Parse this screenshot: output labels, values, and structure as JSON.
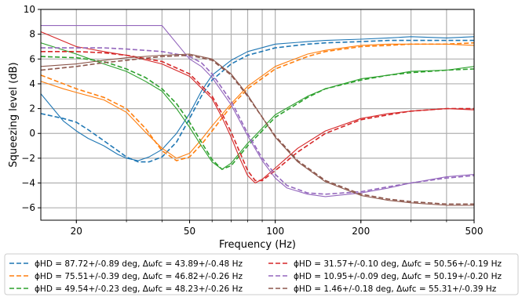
{
  "chart_data": {
    "type": "line",
    "title": "",
    "xlabel": "Frequency (Hz)",
    "ylabel": "Squeezing level (dB)",
    "xscale": "log",
    "xlim": [
      15,
      500
    ],
    "ylim": [
      -7,
      10
    ],
    "xticks": [
      20,
      50,
      100,
      200,
      500
    ],
    "xtick_labels": [
      "20",
      "50",
      "100",
      "200",
      "500"
    ],
    "yticks": [
      -6,
      -4,
      -2,
      0,
      2,
      4,
      6,
      8,
      10
    ],
    "ytick_labels": [
      "−6",
      "−4",
      "−2",
      "0",
      "2",
      "4",
      "6",
      "8",
      "10"
    ],
    "grid": true,
    "legend_position": "below plot",
    "legend_columns": 2,
    "series": [
      {
        "name": "ϕHD = 87.72+/-0.89 deg, Δωfc = 43.89+/-0.48 Hz",
        "color": "#1f77b4",
        "x": [
          15,
          18,
          20,
          22,
          25,
          28,
          30,
          33,
          36,
          40,
          45,
          50,
          55,
          60,
          70,
          80,
          100,
          130,
          150,
          200,
          250,
          300,
          400,
          500
        ],
        "model": [
          1.6,
          1.2,
          0.9,
          0.3,
          -0.6,
          -1.4,
          -1.9,
          -2.3,
          -2.3,
          -1.9,
          -0.7,
          1.2,
          3.0,
          4.3,
          5.6,
          6.3,
          6.9,
          7.2,
          7.3,
          7.4,
          7.5,
          7.5,
          7.5,
          7.5
        ],
        "measured": [
          3.2,
          1.0,
          0.2,
          -0.4,
          -1.0,
          -1.7,
          -2.0,
          -2.2,
          -1.9,
          -1.3,
          0.0,
          1.6,
          3.4,
          4.7,
          5.9,
          6.6,
          7.2,
          7.4,
          7.5,
          7.6,
          7.7,
          7.8,
          7.7,
          7.8
        ]
      },
      {
        "name": "ϕHD = 75.51+/-0.39 deg, Δωfc = 46.82+/-0.26 Hz",
        "color": "#ff7f0e",
        "x": [
          15,
          18,
          20,
          25,
          30,
          35,
          40,
          45,
          50,
          55,
          60,
          70,
          80,
          100,
          130,
          150,
          200,
          250,
          300,
          400,
          500
        ],
        "model": [
          4.7,
          4.0,
          3.6,
          2.9,
          2.0,
          0.4,
          -1.4,
          -2.2,
          -1.9,
          -0.9,
          0.2,
          2.2,
          3.6,
          5.2,
          6.2,
          6.6,
          7.0,
          7.1,
          7.2,
          7.2,
          7.3
        ],
        "measured": [
          4.2,
          3.6,
          3.3,
          2.7,
          1.7,
          0.1,
          -1.2,
          -2.0,
          -1.6,
          -0.5,
          0.6,
          2.4,
          3.8,
          5.4,
          6.4,
          6.7,
          7.1,
          7.2,
          7.2,
          7.2,
          7.1
        ]
      },
      {
        "name": "ϕHD = 49.54+/-0.23 deg, Δωfc = 48.23+/-0.26 Hz",
        "color": "#2ca02c",
        "x": [
          15,
          20,
          25,
          30,
          35,
          40,
          45,
          50,
          55,
          60,
          65,
          70,
          80,
          100,
          130,
          150,
          200,
          250,
          300,
          400,
          500
        ],
        "model": [
          6.2,
          6.1,
          5.8,
          5.2,
          4.5,
          3.6,
          2.4,
          0.9,
          -0.7,
          -2.1,
          -2.9,
          -2.6,
          -1.0,
          1.3,
          2.9,
          3.6,
          4.3,
          4.7,
          4.9,
          5.1,
          5.2
        ],
        "measured": [
          7.3,
          6.4,
          5.6,
          5.0,
          4.2,
          3.4,
          2.0,
          0.5,
          -1.0,
          -2.3,
          -2.9,
          -2.4,
          -0.8,
          1.5,
          3.0,
          3.6,
          4.4,
          4.7,
          5.0,
          5.1,
          5.4
        ]
      },
      {
        "name": "ϕHD = 31.57+/-0.10 deg, Δωfc = 50.56+/-0.19 Hz",
        "color": "#d62728",
        "x": [
          15,
          20,
          25,
          30,
          40,
          50,
          60,
          65,
          70,
          75,
          80,
          85,
          90,
          100,
          120,
          150,
          200,
          250,
          300,
          400,
          500
        ],
        "model": [
          6.6,
          6.6,
          6.5,
          6.3,
          5.8,
          4.8,
          3.0,
          1.6,
          0.1,
          -1.5,
          -3.0,
          -3.8,
          -3.8,
          -3.0,
          -1.5,
          0.0,
          1.1,
          1.5,
          1.8,
          2.0,
          2.0
        ],
        "measured": [
          8.2,
          7.0,
          6.6,
          6.3,
          5.6,
          4.6,
          2.8,
          1.3,
          -0.3,
          -2.0,
          -3.4,
          -4.0,
          -3.7,
          -2.8,
          -1.2,
          0.2,
          1.2,
          1.6,
          1.8,
          2.0,
          1.9
        ]
      },
      {
        "name": "ϕHD = 10.95+/-0.09 deg, Δωfc = 50.19+/-0.20 Hz",
        "color": "#9467bd",
        "x": [
          15,
          20,
          25,
          30,
          40,
          50,
          55,
          60,
          70,
          80,
          90,
          100,
          110,
          130,
          150,
          200,
          250,
          300,
          400,
          500
        ],
        "model": [
          6.9,
          6.9,
          6.9,
          6.8,
          6.6,
          6.2,
          5.7,
          4.8,
          2.6,
          0.0,
          -2.0,
          -3.3,
          -4.2,
          -4.8,
          -4.9,
          -4.7,
          -4.3,
          -4.0,
          -3.6,
          -3.4
        ],
        "measured": [
          8.7,
          8.7,
          8.7,
          8.7,
          8.7,
          6.0,
          5.4,
          4.5,
          2.3,
          -0.2,
          -2.2,
          -3.6,
          -4.4,
          -4.9,
          -5.1,
          -4.8,
          -4.4,
          -4.0,
          -3.5,
          -3.3
        ]
      },
      {
        "name": "ϕHD = 1.46+/-0.18 deg, Δωfc = 55.31+/-0.39 Hz",
        "color": "#8c564b",
        "x": [
          15,
          20,
          25,
          30,
          40,
          50,
          60,
          70,
          80,
          90,
          100,
          120,
          150,
          200,
          250,
          300,
          400,
          500
        ],
        "model": [
          5.1,
          5.4,
          5.7,
          5.9,
          6.2,
          6.3,
          5.9,
          4.7,
          3.0,
          1.3,
          -0.2,
          -2.2,
          -3.8,
          -4.9,
          -5.3,
          -5.5,
          -5.7,
          -5.7
        ],
        "measured": [
          5.4,
          5.6,
          5.9,
          6.1,
          6.3,
          6.4,
          6.0,
          4.8,
          3.1,
          1.3,
          -0.3,
          -2.3,
          -3.9,
          -5.0,
          -5.4,
          -5.6,
          -5.8,
          -5.8
        ]
      }
    ]
  }
}
